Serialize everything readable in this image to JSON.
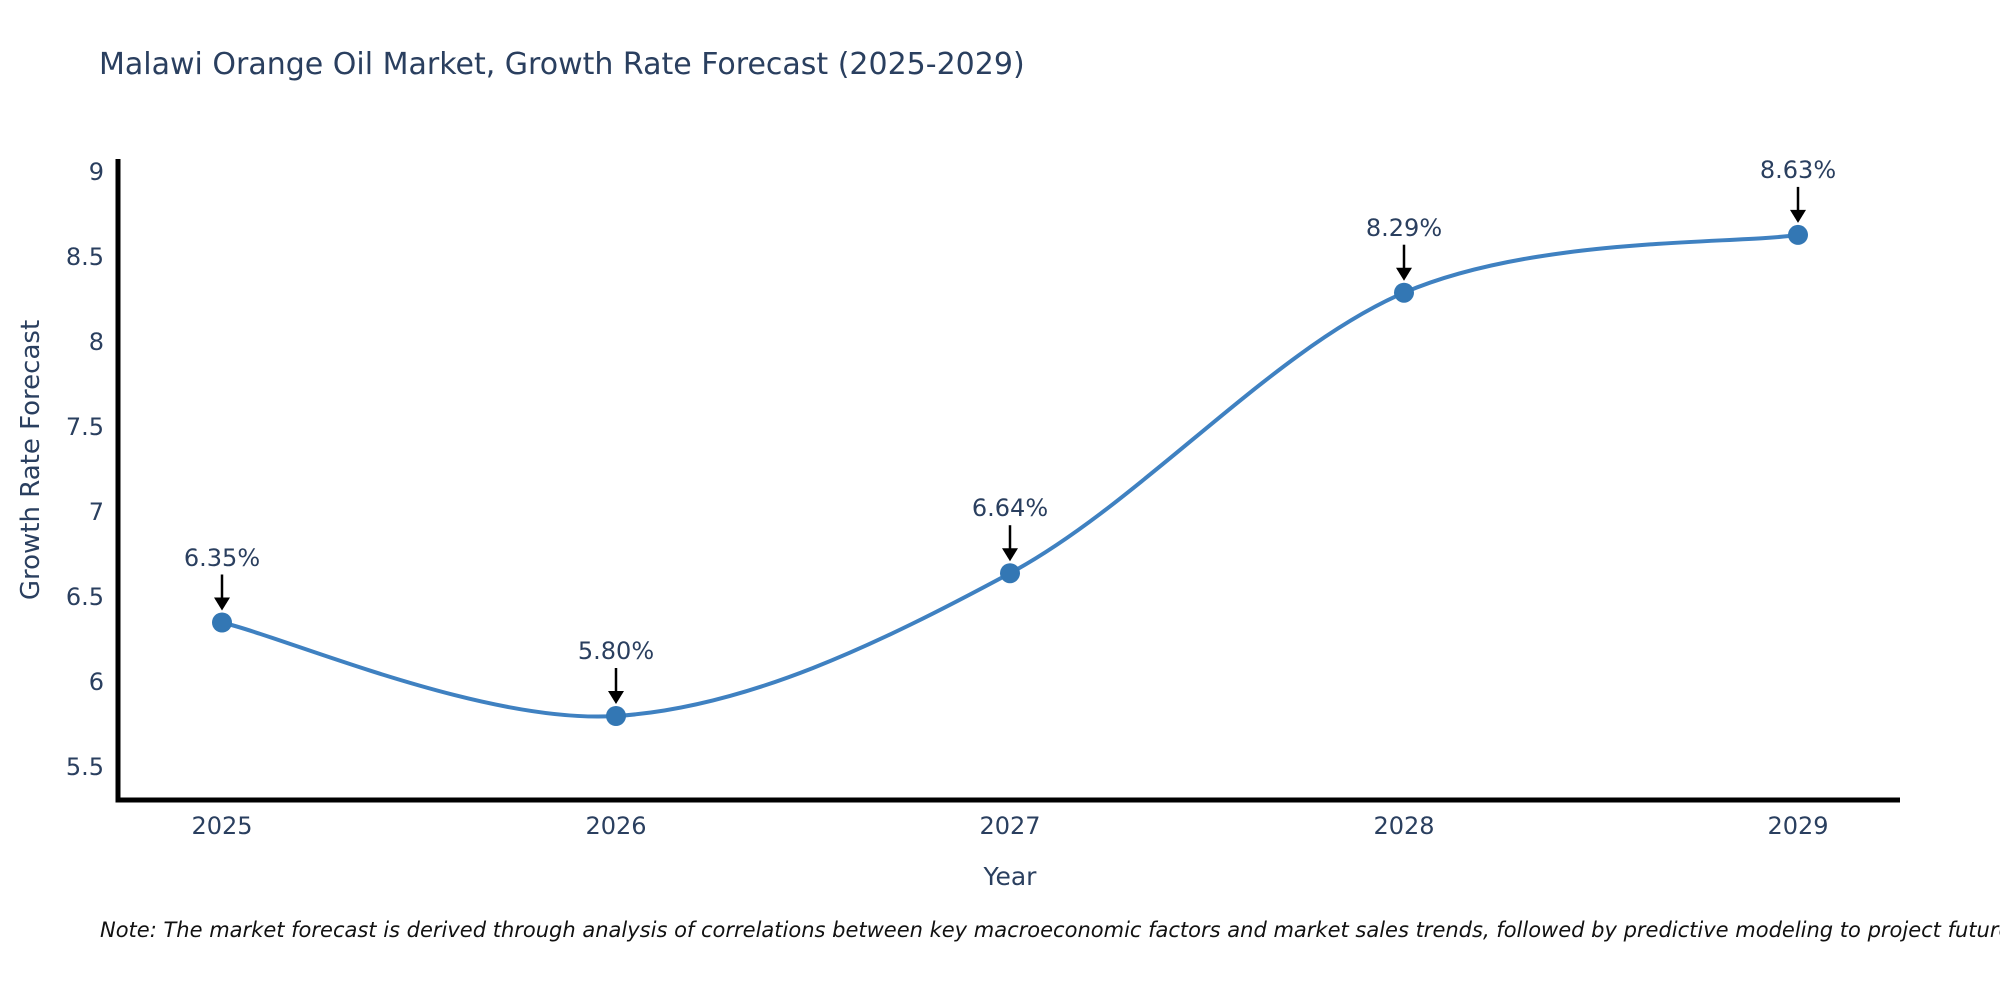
{
  "note": "Note: The market forecast is derived through analysis of correlations between key macroeconomic factors and market sales trends, followed by predictive modeling to project future sales",
  "chart_data": {
    "type": "line",
    "line_shape": "spline",
    "title": "Malawi Orange Oil Market, Growth Rate Forecast (2025-2029)",
    "xlabel": "Year",
    "ylabel": "Growth Rate Forecast",
    "x": [
      2025,
      2026,
      2027,
      2028,
      2029
    ],
    "xtick_labels": [
      "2025",
      "2026",
      "2027",
      "2028",
      "2029"
    ],
    "values": [
      6.35,
      5.8,
      6.64,
      8.29,
      8.63
    ],
    "point_labels": [
      "6.35%",
      "5.80%",
      "6.64%",
      "8.29%",
      "8.63%"
    ],
    "ytick_values": [
      9,
      8.5,
      8,
      7.5,
      7,
      6.5,
      6,
      5.5
    ],
    "ytick_labels": [
      "9",
      "8.5",
      "8",
      "7.5",
      "7",
      "6.5",
      "6",
      "5.5"
    ],
    "ylim": [
      5.31,
      9.08
    ],
    "xlim": [
      2024.74,
      2029.26
    ],
    "grid": false,
    "legend_position": "none",
    "annotations": "arrow-down-to-each-point",
    "colors": {
      "line": "#3f81c1",
      "marker": "#3377b4",
      "axis": "#000000",
      "text": "#2a3f5f",
      "annotation_arrow": "#000000",
      "note_text": "#111111",
      "background": "#ffffff"
    }
  }
}
